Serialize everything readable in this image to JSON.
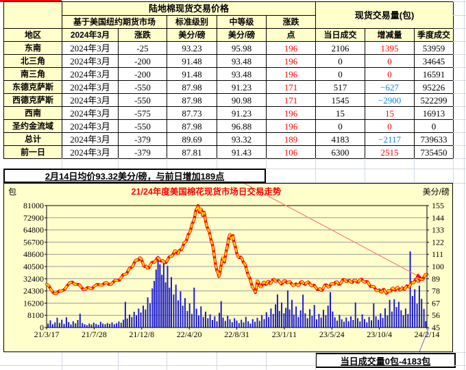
{
  "colors": {
    "red_text": "#ff0000",
    "blue_text": "#0a85e0",
    "header_yellow": "#ffffcc",
    "chart_bg": "#ffffcc",
    "bar_blue": "#1a1ad1",
    "line_red": "#ff0000",
    "line_dash_yellow": "#ffc800",
    "grid_gray": "#9a9a9a",
    "leader_red": "#f08080",
    "leader_blue": "#8080dd"
  },
  "table": {
    "main_title": "陆地棉现货交易价格",
    "volume_title": "现货交易量(包)",
    "futures_header": "基于美国纽约期货市场",
    "std_grade": "标准级别",
    "mid_grade": "中等级",
    "change_hdr": "涨跌",
    "region_hdr": "地区",
    "month_hdr": "2024年3月",
    "change_sub": "涨跌",
    "unit1": "美分/磅",
    "unit2": "美分/磅",
    "pts_hdr": "点",
    "daily_hdr": "当日成交",
    "delta_hdr": "增减量",
    "seasonal_hdr": "季度成交",
    "rows": [
      {
        "region": "东南",
        "month": "2024年3月",
        "change": "-25",
        "std": "93.23",
        "mid": "95.98",
        "pts": "196",
        "daily": "2106",
        "delta": "1395",
        "seasonal": "53959"
      },
      {
        "region": "北三角",
        "month": "2024年3月",
        "change": "-200",
        "std": "91.48",
        "mid": "93.48",
        "pts": "196",
        "daily": "0",
        "delta": "0",
        "seasonal": "34645"
      },
      {
        "region": "南三角",
        "month": "2024年3月",
        "change": "-200",
        "std": "91.48",
        "mid": "93.48",
        "pts": "196",
        "daily": "0",
        "delta": "0",
        "seasonal": "16591"
      },
      {
        "region": "东德克萨斯",
        "month": "2024年3月",
        "change": "-550",
        "std": "87.98",
        "mid": "91.23",
        "pts": "171",
        "daily": "517",
        "delta": "−627",
        "seasonal": "95226"
      },
      {
        "region": "西德克萨斯",
        "month": "2024年3月",
        "change": "-550",
        "std": "87.98",
        "mid": "90.98",
        "pts": "171",
        "daily": "1545",
        "delta": "−2900",
        "seasonal": "522299"
      },
      {
        "region": "西南",
        "month": "2024年3月",
        "change": "-575",
        "std": "87.73",
        "mid": "91.23",
        "pts": "196",
        "daily": "15",
        "delta": "15",
        "seasonal": "16913"
      },
      {
        "region": "圣约金流域",
        "month": "2024年3月",
        "change": "-550",
        "std": "87.98",
        "mid": "96.88",
        "pts": "196",
        "daily": "0",
        "delta": "0",
        "seasonal": "0"
      },
      {
        "region": "总计",
        "month": "2024年3月",
        "change": "-379",
        "std": "89.69",
        "mid": "93.32",
        "pts": "189",
        "daily": "4183",
        "delta": "−2117",
        "seasonal": "739633"
      },
      {
        "region": "前一日",
        "month": "2024年3月",
        "change": "-379",
        "std": "87.81",
        "mid": "91.43",
        "pts": "106",
        "daily": "6300",
        "delta": "2515",
        "seasonal": "735450"
      }
    ]
  },
  "note_box": "2月14日均价93.32美分/磅，与前日增加189点",
  "bottom_box": "当日成交量0包-4183包",
  "chart_data": {
    "type": "combo-line-bar",
    "title": "21/24年度美国棉花现货市场日交易走势",
    "left_axis_label": "包",
    "right_axis_label": "美分/磅",
    "left_range": [
      0,
      81000
    ],
    "right_range": [
      45,
      155
    ],
    "left_ticks": [
      "81000",
      "72900",
      "64800",
      "56700",
      "48600",
      "40500",
      "32400",
      "24300",
      "16200",
      "8100",
      "0"
    ],
    "right_ticks": [
      "155",
      "144",
      "133",
      "122",
      "111",
      "100",
      "89",
      "78",
      "67",
      "56",
      "45"
    ],
    "x_ticks": [
      "21/3/17",
      "21/7/28",
      "21/12/8",
      "22/4/20",
      "22/8/31",
      "23/1/11",
      "23/5/24",
      "23/10/4",
      "24/2/14"
    ],
    "grid": true,
    "legend": "none",
    "price_line_points": [
      [
        0.0,
        84
      ],
      [
        0.012,
        79
      ],
      [
        0.025,
        75.5
      ],
      [
        0.04,
        78
      ],
      [
        0.055,
        83
      ],
      [
        0.068,
        86
      ],
      [
        0.08,
        84
      ],
      [
        0.092,
        81
      ],
      [
        0.102,
        79.5
      ],
      [
        0.114,
        80.5
      ],
      [
        0.125,
        82
      ],
      [
        0.14,
        83.5
      ],
      [
        0.152,
        85
      ],
      [
        0.163,
        84
      ],
      [
        0.175,
        86
      ],
      [
        0.186,
        87.5
      ],
      [
        0.196,
        90
      ],
      [
        0.206,
        93
      ],
      [
        0.214,
        96
      ],
      [
        0.222,
        99
      ],
      [
        0.23,
        103
      ],
      [
        0.238,
        106
      ],
      [
        0.245,
        108
      ],
      [
        0.252,
        104
      ],
      [
        0.258,
        100
      ],
      [
        0.265,
        98.5
      ],
      [
        0.272,
        101
      ],
      [
        0.28,
        104
      ],
      [
        0.288,
        106
      ],
      [
        0.295,
        107.5
      ],
      [
        0.302,
        105
      ],
      [
        0.31,
        103.5
      ],
      [
        0.318,
        106
      ],
      [
        0.326,
        109
      ],
      [
        0.334,
        112
      ],
      [
        0.34,
        114
      ],
      [
        0.346,
        112
      ],
      [
        0.352,
        115
      ],
      [
        0.358,
        118
      ],
      [
        0.364,
        122
      ],
      [
        0.37,
        126
      ],
      [
        0.375,
        130
      ],
      [
        0.38,
        135
      ],
      [
        0.385,
        140
      ],
      [
        0.39,
        146
      ],
      [
        0.394,
        152
      ],
      [
        0.398,
        155
      ],
      [
        0.402,
        149
      ],
      [
        0.406,
        152
      ],
      [
        0.41,
        146
      ],
      [
        0.414,
        149
      ],
      [
        0.418,
        141
      ],
      [
        0.424,
        134
      ],
      [
        0.43,
        128
      ],
      [
        0.436,
        120
      ],
      [
        0.442,
        107
      ],
      [
        0.448,
        96
      ],
      [
        0.453,
        91
      ],
      [
        0.458,
        99
      ],
      [
        0.463,
        108
      ],
      [
        0.468,
        104
      ],
      [
        0.473,
        115
      ],
      [
        0.478,
        124
      ],
      [
        0.482,
        129
      ],
      [
        0.486,
        125
      ],
      [
        0.49,
        128
      ],
      [
        0.494,
        120
      ],
      [
        0.5,
        112
      ],
      [
        0.507,
        108
      ],
      [
        0.514,
        107
      ],
      [
        0.52,
        103
      ],
      [
        0.526,
        97
      ],
      [
        0.532,
        91
      ],
      [
        0.538,
        85
      ],
      [
        0.544,
        80
      ],
      [
        0.549,
        76.5
      ],
      [
        0.554,
        87
      ],
      [
        0.56,
        83
      ],
      [
        0.566,
        82.5
      ],
      [
        0.572,
        86
      ],
      [
        0.578,
        84
      ],
      [
        0.584,
        86.5
      ],
      [
        0.59,
        85
      ],
      [
        0.598,
        88.5
      ],
      [
        0.606,
        87
      ],
      [
        0.614,
        85.5
      ],
      [
        0.62,
        85
      ],
      [
        0.628,
        87
      ],
      [
        0.636,
        86
      ],
      [
        0.644,
        84.5
      ],
      [
        0.652,
        83.5
      ],
      [
        0.66,
        83
      ],
      [
        0.668,
        86
      ],
      [
        0.676,
        84.5
      ],
      [
        0.684,
        85.5
      ],
      [
        0.692,
        84.5
      ],
      [
        0.7,
        83
      ],
      [
        0.708,
        81
      ],
      [
        0.716,
        79.5
      ],
      [
        0.722,
        78.5
      ],
      [
        0.728,
        81
      ],
      [
        0.736,
        83.5
      ],
      [
        0.744,
        82
      ],
      [
        0.752,
        84.5
      ],
      [
        0.76,
        86
      ],
      [
        0.768,
        84
      ],
      [
        0.776,
        86.5
      ],
      [
        0.784,
        88
      ],
      [
        0.792,
        87
      ],
      [
        0.8,
        86
      ],
      [
        0.808,
        87.5
      ],
      [
        0.816,
        86
      ],
      [
        0.824,
        88
      ],
      [
        0.832,
        87
      ],
      [
        0.84,
        86.5
      ],
      [
        0.848,
        84
      ],
      [
        0.856,
        82
      ],
      [
        0.864,
        80
      ],
      [
        0.872,
        78.5
      ],
      [
        0.878,
        77
      ],
      [
        0.884,
        79
      ],
      [
        0.89,
        77.5
      ],
      [
        0.896,
        76.5
      ],
      [
        0.902,
        78
      ],
      [
        0.908,
        80
      ],
      [
        0.914,
        79
      ],
      [
        0.92,
        80.5
      ],
      [
        0.926,
        80
      ],
      [
        0.932,
        79.5
      ],
      [
        0.938,
        80
      ],
      [
        0.944,
        81
      ],
      [
        0.95,
        82
      ],
      [
        0.956,
        83.5
      ],
      [
        0.962,
        85.5
      ],
      [
        0.968,
        87
      ],
      [
        0.974,
        88
      ],
      [
        0.98,
        87.5
      ],
      [
        0.986,
        88.5
      ],
      [
        0.992,
        90.5
      ],
      [
        1.0,
        93
      ]
    ],
    "volume_bars": [
      [
        0.004,
        2600
      ],
      [
        0.01,
        4800
      ],
      [
        0.016,
        2200
      ],
      [
        0.022,
        3400
      ],
      [
        0.028,
        6500
      ],
      [
        0.034,
        3000
      ],
      [
        0.04,
        5200
      ],
      [
        0.046,
        2400
      ],
      [
        0.052,
        6800
      ],
      [
        0.058,
        3600
      ],
      [
        0.064,
        2000
      ],
      [
        0.07,
        4200
      ],
      [
        0.076,
        2800
      ],
      [
        0.082,
        5000
      ],
      [
        0.088,
        9200
      ],
      [
        0.094,
        3000
      ],
      [
        0.1,
        2200
      ],
      [
        0.106,
        1600
      ],
      [
        0.112,
        2600
      ],
      [
        0.118,
        2000
      ],
      [
        0.124,
        3200
      ],
      [
        0.13,
        2400
      ],
      [
        0.136,
        1800
      ],
      [
        0.142,
        3800
      ],
      [
        0.148,
        2600
      ],
      [
        0.154,
        2200
      ],
      [
        0.16,
        3000
      ],
      [
        0.166,
        2400
      ],
      [
        0.172,
        3400
      ],
      [
        0.178,
        2200
      ],
      [
        0.184,
        2800
      ],
      [
        0.19,
        4000
      ],
      [
        0.196,
        3200
      ],
      [
        0.202,
        5200
      ],
      [
        0.207,
        17000
      ],
      [
        0.212,
        6000
      ],
      [
        0.218,
        8600
      ],
      [
        0.224,
        7000
      ],
      [
        0.23,
        10400
      ],
      [
        0.236,
        8200
      ],
      [
        0.242,
        12600
      ],
      [
        0.248,
        10000
      ],
      [
        0.254,
        14500
      ],
      [
        0.26,
        12000
      ],
      [
        0.266,
        20000
      ],
      [
        0.272,
        16000
      ],
      [
        0.278,
        26000
      ],
      [
        0.283,
        31000
      ],
      [
        0.288,
        38500
      ],
      [
        0.293,
        47500
      ],
      [
        0.298,
        42000
      ],
      [
        0.303,
        35000
      ],
      [
        0.308,
        44500
      ],
      [
        0.313,
        30000
      ],
      [
        0.318,
        41000
      ],
      [
        0.323,
        26500
      ],
      [
        0.328,
        33500
      ],
      [
        0.334,
        22000
      ],
      [
        0.34,
        28500
      ],
      [
        0.346,
        18000
      ],
      [
        0.352,
        24000
      ],
      [
        0.358,
        14500
      ],
      [
        0.364,
        19500
      ],
      [
        0.37,
        11000
      ],
      [
        0.376,
        16000
      ],
      [
        0.382,
        9000
      ],
      [
        0.388,
        26500
      ],
      [
        0.394,
        12500
      ],
      [
        0.4,
        8000
      ],
      [
        0.406,
        14000
      ],
      [
        0.412,
        7000
      ],
      [
        0.418,
        10500
      ],
      [
        0.424,
        6200
      ],
      [
        0.43,
        8800
      ],
      [
        0.436,
        5000
      ],
      [
        0.442,
        7400
      ],
      [
        0.448,
        4200
      ],
      [
        0.454,
        9800
      ],
      [
        0.459,
        17500
      ],
      [
        0.464,
        6600
      ],
      [
        0.47,
        4400
      ],
      [
        0.476,
        7800
      ],
      [
        0.482,
        5400
      ],
      [
        0.488,
        3600
      ],
      [
        0.494,
        6200
      ],
      [
        0.5,
        4600
      ],
      [
        0.506,
        3000
      ],
      [
        0.512,
        5200
      ],
      [
        0.518,
        3400
      ],
      [
        0.524,
        7000
      ],
      [
        0.53,
        4200
      ],
      [
        0.536,
        2600
      ],
      [
        0.542,
        5600
      ],
      [
        0.548,
        3800
      ],
      [
        0.554,
        6400
      ],
      [
        0.56,
        4400
      ],
      [
        0.566,
        8200
      ],
      [
        0.572,
        5600
      ],
      [
        0.578,
        10200
      ],
      [
        0.584,
        7000
      ],
      [
        0.59,
        12600
      ],
      [
        0.596,
        9000
      ],
      [
        0.602,
        15400
      ],
      [
        0.607,
        22000
      ],
      [
        0.612,
        11000
      ],
      [
        0.618,
        16600
      ],
      [
        0.624,
        9400
      ],
      [
        0.629,
        13000
      ],
      [
        0.634,
        24600
      ],
      [
        0.639,
        12000
      ],
      [
        0.645,
        18400
      ],
      [
        0.65,
        8600
      ],
      [
        0.656,
        14000
      ],
      [
        0.662,
        7000
      ],
      [
        0.668,
        11400
      ],
      [
        0.674,
        21800
      ],
      [
        0.68,
        9400
      ],
      [
        0.686,
        6200
      ],
      [
        0.692,
        12200
      ],
      [
        0.698,
        7800
      ],
      [
        0.704,
        15000
      ],
      [
        0.71,
        5400
      ],
      [
        0.716,
        9000
      ],
      [
        0.722,
        6600
      ],
      [
        0.728,
        11800
      ],
      [
        0.734,
        8200
      ],
      [
        0.74,
        14600
      ],
      [
        0.746,
        23500
      ],
      [
        0.752,
        10600
      ],
      [
        0.758,
        6800
      ],
      [
        0.764,
        4600
      ],
      [
        0.77,
        8400
      ],
      [
        0.776,
        5400
      ],
      [
        0.782,
        3800
      ],
      [
        0.788,
        6600
      ],
      [
        0.794,
        4200
      ],
      [
        0.8,
        7400
      ],
      [
        0.806,
        5000
      ],
      [
        0.812,
        16600
      ],
      [
        0.818,
        6200
      ],
      [
        0.824,
        4000
      ],
      [
        0.83,
        8800
      ],
      [
        0.836,
        5600
      ],
      [
        0.842,
        3400
      ],
      [
        0.848,
        7000
      ],
      [
        0.854,
        4800
      ],
      [
        0.86,
        16000
      ],
      [
        0.866,
        7400
      ],
      [
        0.872,
        5200
      ],
      [
        0.878,
        9400
      ],
      [
        0.884,
        6400
      ],
      [
        0.89,
        12800
      ],
      [
        0.896,
        8000
      ],
      [
        0.902,
        18400
      ],
      [
        0.908,
        10600
      ],
      [
        0.914,
        18800
      ],
      [
        0.92,
        13600
      ],
      [
        0.926,
        17000
      ],
      [
        0.932,
        11400
      ],
      [
        0.938,
        8200
      ],
      [
        0.944,
        12600
      ],
      [
        0.95,
        9000
      ],
      [
        0.956,
        50600
      ],
      [
        0.962,
        21000
      ],
      [
        0.968,
        25400
      ],
      [
        0.974,
        15800
      ],
      [
        0.98,
        27800
      ],
      [
        0.986,
        19000
      ],
      [
        0.992,
        12400
      ],
      [
        0.997,
        4183
      ]
    ]
  }
}
